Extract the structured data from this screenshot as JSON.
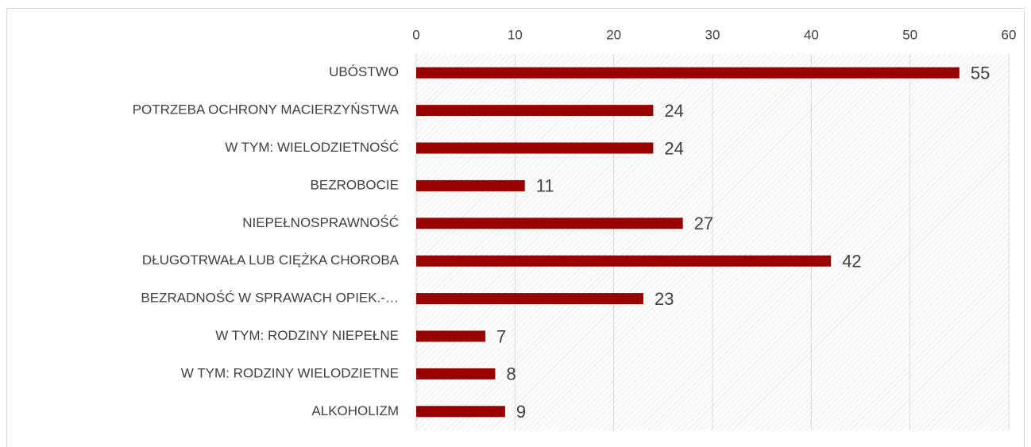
{
  "chart_data": {
    "type": "bar",
    "orientation": "horizontal",
    "categories": [
      "UBÓSTWO",
      "POTRZEBA OCHRONY MACIERZYŃSTWA",
      "W TYM: WIELODZIETNOŚĆ",
      "BEZROBOCIE",
      "NIEPEŁNOSPRAWNOŚĆ",
      "DŁUGOTRWAŁA LUB CIĘŻKA CHOROBA",
      "BEZRADNOŚĆ W SPRAWACH OPIEK.-…",
      "W TYM: RODZINY NIEPEŁNE",
      "W TYM: RODZINY WIELODZIETNE",
      "ALKOHOLIZM"
    ],
    "values": [
      55,
      24,
      24,
      11,
      27,
      42,
      23,
      7,
      8,
      9
    ],
    "color": "#990000",
    "xlim": [
      0,
      60
    ],
    "xticks": [
      0,
      10,
      20,
      30,
      40,
      50,
      60
    ],
    "grid": true
  }
}
